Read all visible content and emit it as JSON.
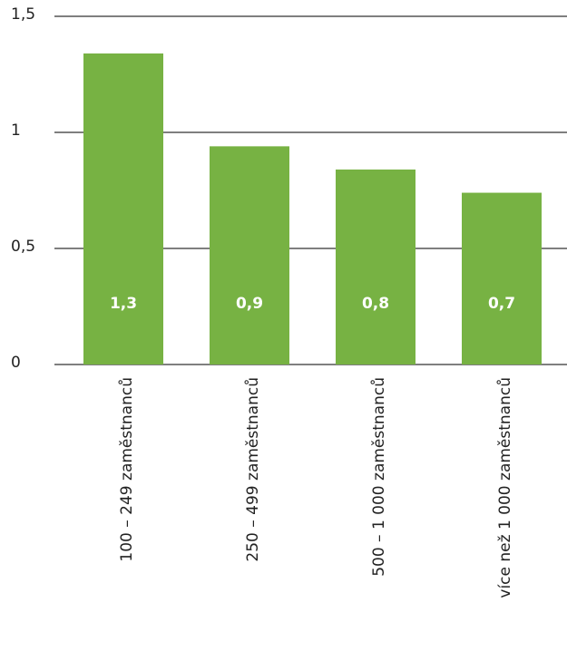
{
  "chart_data": {
    "type": "bar",
    "categories": [
      "100 – 249  zaměstnanců",
      "250 – 499 zaměstnanců",
      "500 – 1 000 zaměstnanců",
      "více než 1 000 zaměstnanců"
    ],
    "values": [
      1.34,
      0.94,
      0.84,
      0.74
    ],
    "value_labels": [
      "1,3",
      "0,9",
      "0,8",
      "0,7"
    ],
    "color": "#77b243",
    "ylim": [
      0,
      1.5
    ],
    "yticks": [
      0,
      {
        "value": 0.5,
        "label": "0,5"
      },
      1,
      {
        "value": 1.5,
        "label": "1,5"
      }
    ],
    "grid": true
  }
}
